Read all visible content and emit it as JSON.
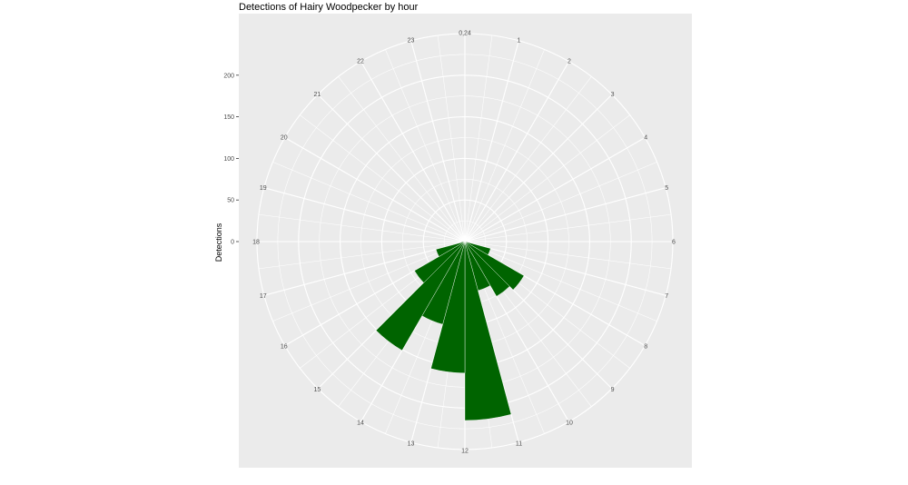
{
  "chart_data": {
    "type": "bar",
    "coordinates": "polar",
    "title": "Detections of Hairy Woodpecker by hour",
    "ylabel": "Detections",
    "xlabel": "",
    "angular_axis": {
      "labels": [
        "0,24",
        "1",
        "2",
        "3",
        "4",
        "5",
        "6",
        "7",
        "8",
        "9",
        "10",
        "11",
        "12",
        "13",
        "14",
        "15",
        "16",
        "17",
        "18",
        "19",
        "20",
        "21",
        "22",
        "23"
      ]
    },
    "radial_axis": {
      "ticks": [
        0,
        50,
        100,
        150,
        200
      ],
      "tick_labels": [
        "0",
        "50",
        "100",
        "150",
        "200"
      ]
    },
    "grid": true,
    "legend": "none",
    "bar_color": "#006400",
    "panel_background": "#ebebeb",
    "grid_color": "#ffffff",
    "hours": [
      6,
      7,
      8,
      9,
      10,
      11,
      12,
      13,
      14,
      15,
      16,
      17
    ],
    "values": [
      3,
      32,
      82,
      76,
      61,
      215,
      158,
      103,
      151,
      70,
      36,
      4
    ]
  }
}
